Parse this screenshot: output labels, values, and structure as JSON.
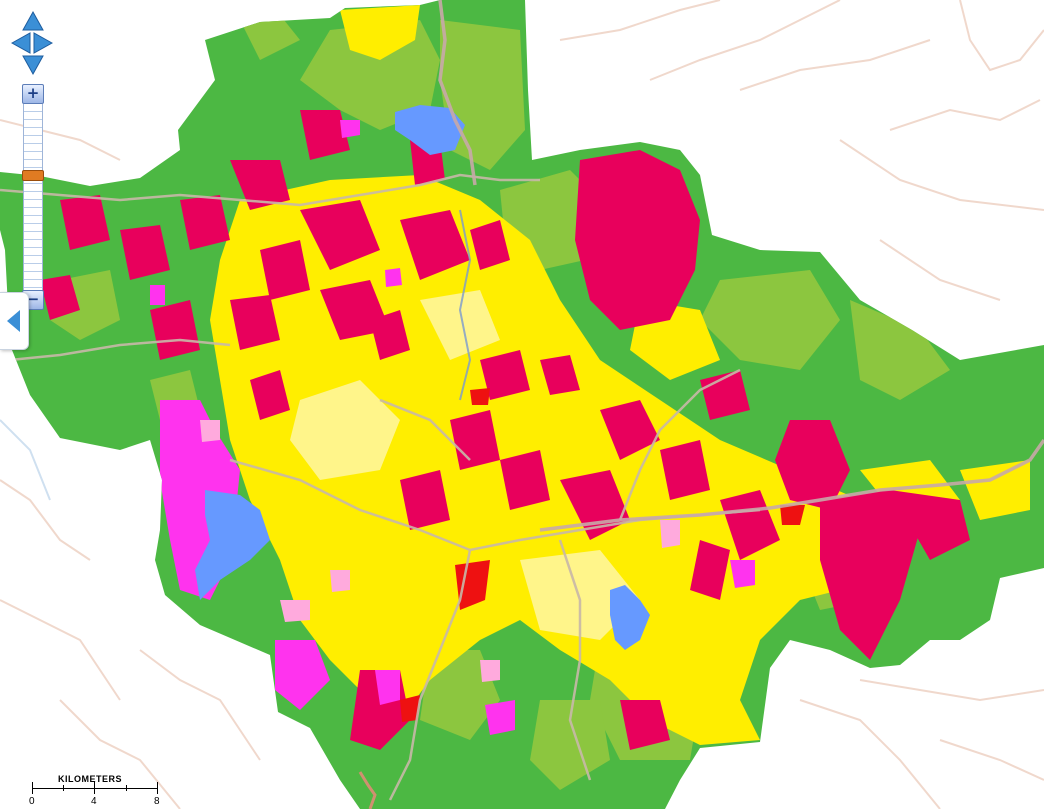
{
  "map": {
    "legend_colors": {
      "forest": "#4cb843",
      "light_green": "#8cc63f",
      "yellow": "#ffee00",
      "pale_yellow": "#fff58a",
      "crimson": "#e8005c",
      "magenta": "#ff33ee",
      "pink": "#ffaadd",
      "water": "#6699ff",
      "red": "#ee1111",
      "road": "#c8b8a8",
      "river": "#d09070",
      "outside_border": "#f0d8cc"
    }
  },
  "controls": {
    "pan_up_icon": "arrow-up-icon",
    "pan_left_icon": "arrow-left-icon",
    "pan_right_icon": "arrow-right-icon",
    "pan_down_icon": "arrow-down-icon",
    "zoom_in_label": "+",
    "zoom_out_label": "−",
    "panel_toggle_icon": "chevron-left-icon"
  },
  "scalebar": {
    "title": "KILOMETERS",
    "labels": [
      "0",
      "4",
      "8"
    ]
  }
}
